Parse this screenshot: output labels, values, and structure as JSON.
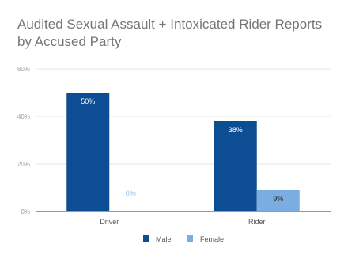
{
  "chart_data": {
    "type": "bar",
    "title": "Audited Sexual Assault + Intoxicated Rider Reports by Accused Party",
    "categories": [
      "Driver",
      "Rider"
    ],
    "series": [
      {
        "name": "Male",
        "values": [
          50,
          38
        ],
        "labels": [
          "50%",
          "38%"
        ],
        "color": "#0d4d94",
        "label_color": "#ffffff"
      },
      {
        "name": "Female",
        "values": [
          0,
          9
        ],
        "labels": [
          "0%",
          "9%"
        ],
        "color": "#7aaee0",
        "label_color": "#2a2a2a"
      }
    ],
    "ylim": [
      0,
      60
    ],
    "yticks": [
      0,
      20,
      40,
      60
    ],
    "ytick_labels": [
      "0%",
      "20%",
      "40%",
      "60%"
    ],
    "grid": true,
    "legend": "bottom",
    "xlabel": "",
    "ylabel": ""
  }
}
